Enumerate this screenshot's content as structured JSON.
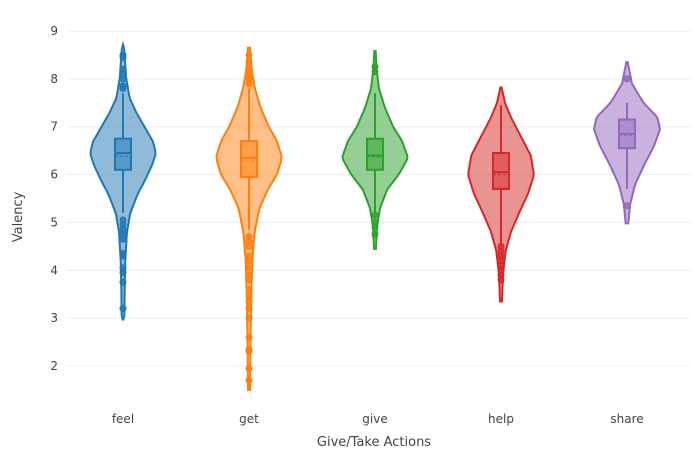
{
  "chart_data": {
    "type": "violin",
    "title": "",
    "xlabel": "Give/Take Actions",
    "ylabel": "Valency",
    "ylim": [
      1.5,
      9.0
    ],
    "yticks": [
      2,
      3,
      4,
      5,
      6,
      7,
      8,
      9
    ],
    "grid": "horizontal",
    "categories": [
      "feel",
      "get",
      "give",
      "help",
      "share"
    ],
    "colors": [
      "#1f77b4",
      "#ff7f0e",
      "#2ca02c",
      "#d62728",
      "#9467bd"
    ],
    "series": [
      {
        "category": "feel",
        "min": 2.95,
        "max": 8.72,
        "q1": 6.1,
        "median": 6.45,
        "q3": 6.75,
        "mean": 6.38,
        "whisker_low": 5.2,
        "whisker_high": 7.7,
        "density": [
          [
            3.0,
            0.04
          ],
          [
            3.6,
            0.05
          ],
          [
            4.2,
            0.07
          ],
          [
            4.8,
            0.12
          ],
          [
            5.2,
            0.22
          ],
          [
            5.6,
            0.45
          ],
          [
            5.9,
            0.68
          ],
          [
            6.2,
            0.88
          ],
          [
            6.45,
            1.0
          ],
          [
            6.7,
            0.9
          ],
          [
            7.0,
            0.65
          ],
          [
            7.3,
            0.4
          ],
          [
            7.6,
            0.2
          ],
          [
            8.0,
            0.1
          ],
          [
            8.4,
            0.06
          ],
          [
            8.7,
            0.03
          ]
        ],
        "outliers": [
          3.2,
          3.75,
          3.95,
          4.05,
          4.3,
          4.35,
          4.65,
          4.75,
          4.85,
          4.95,
          5.05,
          7.8,
          7.85,
          8.0,
          8.1,
          8.2,
          8.45,
          8.5
        ]
      },
      {
        "category": "get",
        "min": 1.5,
        "max": 8.65,
        "q1": 5.95,
        "median": 6.35,
        "q3": 6.7,
        "mean": 6.28,
        "whisker_low": 4.85,
        "whisker_high": 7.8,
        "density": [
          [
            1.5,
            0.03
          ],
          [
            2.2,
            0.04
          ],
          [
            2.8,
            0.05
          ],
          [
            3.5,
            0.07
          ],
          [
            4.2,
            0.1
          ],
          [
            4.8,
            0.17
          ],
          [
            5.3,
            0.32
          ],
          [
            5.7,
            0.58
          ],
          [
            6.0,
            0.85
          ],
          [
            6.35,
            1.0
          ],
          [
            6.7,
            0.85
          ],
          [
            7.0,
            0.6
          ],
          [
            7.4,
            0.35
          ],
          [
            7.8,
            0.18
          ],
          [
            8.2,
            0.08
          ],
          [
            8.65,
            0.03
          ]
        ],
        "outliers": [
          1.7,
          1.95,
          2.3,
          2.35,
          2.6,
          3.0,
          3.2,
          3.35,
          3.45,
          3.6,
          3.8,
          3.9,
          4.05,
          4.2,
          4.3,
          4.5,
          4.6,
          4.7,
          7.9,
          8.0,
          8.1,
          8.2,
          8.35,
          8.5
        ]
      },
      {
        "category": "give",
        "min": 4.45,
        "max": 8.58,
        "q1": 6.1,
        "median": 6.4,
        "q3": 6.75,
        "mean": 6.37,
        "whisker_low": 5.2,
        "whisker_high": 7.7,
        "density": [
          [
            4.45,
            0.03
          ],
          [
            4.9,
            0.06
          ],
          [
            5.3,
            0.15
          ],
          [
            5.7,
            0.38
          ],
          [
            6.0,
            0.72
          ],
          [
            6.35,
            1.0
          ],
          [
            6.7,
            0.82
          ],
          [
            7.0,
            0.55
          ],
          [
            7.4,
            0.3
          ],
          [
            7.8,
            0.12
          ],
          [
            8.2,
            0.05
          ],
          [
            8.58,
            0.02
          ]
        ],
        "outliers": [
          4.75,
          4.9,
          5.0,
          5.15,
          8.15,
          8.25
        ]
      },
      {
        "category": "help",
        "min": 3.35,
        "max": 7.82,
        "q1": 5.7,
        "median": 6.05,
        "q3": 6.45,
        "mean": 6.0,
        "whisker_low": 4.55,
        "whisker_high": 7.45,
        "density": [
          [
            3.35,
            0.03
          ],
          [
            3.9,
            0.06
          ],
          [
            4.4,
            0.14
          ],
          [
            4.8,
            0.3
          ],
          [
            5.2,
            0.55
          ],
          [
            5.6,
            0.82
          ],
          [
            6.0,
            1.0
          ],
          [
            6.4,
            0.9
          ],
          [
            6.8,
            0.6
          ],
          [
            7.2,
            0.3
          ],
          [
            7.5,
            0.12
          ],
          [
            7.82,
            0.02
          ]
        ],
        "outliers": [
          3.8,
          3.9,
          4.0,
          4.1,
          4.2,
          4.3,
          4.4,
          4.5
        ]
      },
      {
        "category": "share",
        "min": 4.98,
        "max": 8.35,
        "q1": 6.55,
        "median": 6.85,
        "q3": 7.15,
        "mean": 6.82,
        "whisker_low": 5.7,
        "whisker_high": 7.5,
        "density": [
          [
            4.98,
            0.04
          ],
          [
            5.4,
            0.1
          ],
          [
            5.8,
            0.25
          ],
          [
            6.2,
            0.52
          ],
          [
            6.6,
            0.82
          ],
          [
            6.95,
            1.0
          ],
          [
            7.2,
            0.92
          ],
          [
            7.5,
            0.5
          ],
          [
            7.9,
            0.15
          ],
          [
            8.35,
            0.02
          ]
        ],
        "outliers": [
          5.35,
          8.0
        ]
      }
    ]
  }
}
